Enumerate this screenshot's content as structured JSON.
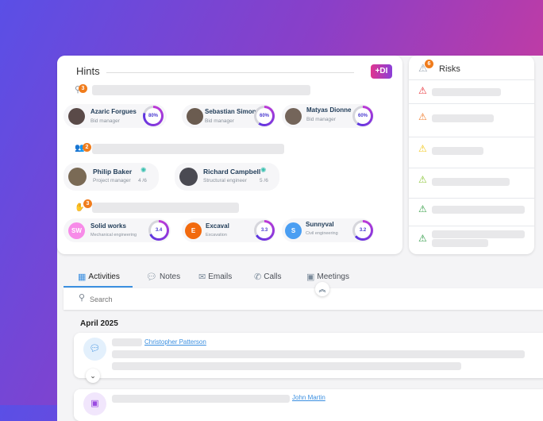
{
  "hints": {
    "title": "Hints",
    "ai_badge": "+DI",
    "groups": [
      {
        "icon": "user-search-icon",
        "count": "3",
        "items": [
          {
            "name": "Azaric Forgues",
            "role": "Bid manager",
            "score": "80%",
            "percent": 80
          },
          {
            "name": "Sebastian Simon",
            "role": "Bid manager",
            "score": "60%",
            "percent": 60
          },
          {
            "name": "Matyas Dionne",
            "role": "Bid manager",
            "score": "60%",
            "percent": 60
          }
        ]
      },
      {
        "icon": "team-icon",
        "count": "2",
        "items": [
          {
            "name": "Philip Baker",
            "role": "Project manager",
            "ratio": "4 /6"
          },
          {
            "name": "Richard Campbell",
            "role": "Structural engineer",
            "ratio": "5 /6"
          }
        ]
      },
      {
        "icon": "hand-icon",
        "count": "3",
        "items": [
          {
            "initials": "SW",
            "name": "Solid works",
            "role": "Mechanical engineering",
            "score": "3.4",
            "percent": 68,
            "color": "#f78be8"
          },
          {
            "initials": "E",
            "name": "Excaval",
            "role": "Excavation",
            "score": "3.3",
            "percent": 66,
            "color": "#f26a0e"
          },
          {
            "initials": "S",
            "name": "Sunnyval",
            "role": "Civil engineering",
            "score": "3.2",
            "percent": 64,
            "color": "#4a9ef2"
          }
        ]
      }
    ]
  },
  "risks": {
    "title": "Risks",
    "count": "6",
    "colors": [
      "#e8333a",
      "#f07c2c",
      "#f2c81c",
      "#8cc63a",
      "#3aa04a",
      "#2e9a44"
    ]
  },
  "tabs": [
    {
      "label": "Activities",
      "icon": "calendar-icon",
      "active": true
    },
    {
      "label": "Notes",
      "icon": "note-icon"
    },
    {
      "label": "Emails",
      "icon": "email-icon"
    },
    {
      "label": "Calls",
      "icon": "phone-icon"
    },
    {
      "label": "Meetings",
      "icon": "meeting-icon"
    }
  ],
  "search": {
    "placeholder": "Search"
  },
  "feed": {
    "month": "April 2025",
    "items": [
      {
        "link": "Christopher Patterson"
      },
      {
        "link": "John Martin"
      }
    ]
  }
}
